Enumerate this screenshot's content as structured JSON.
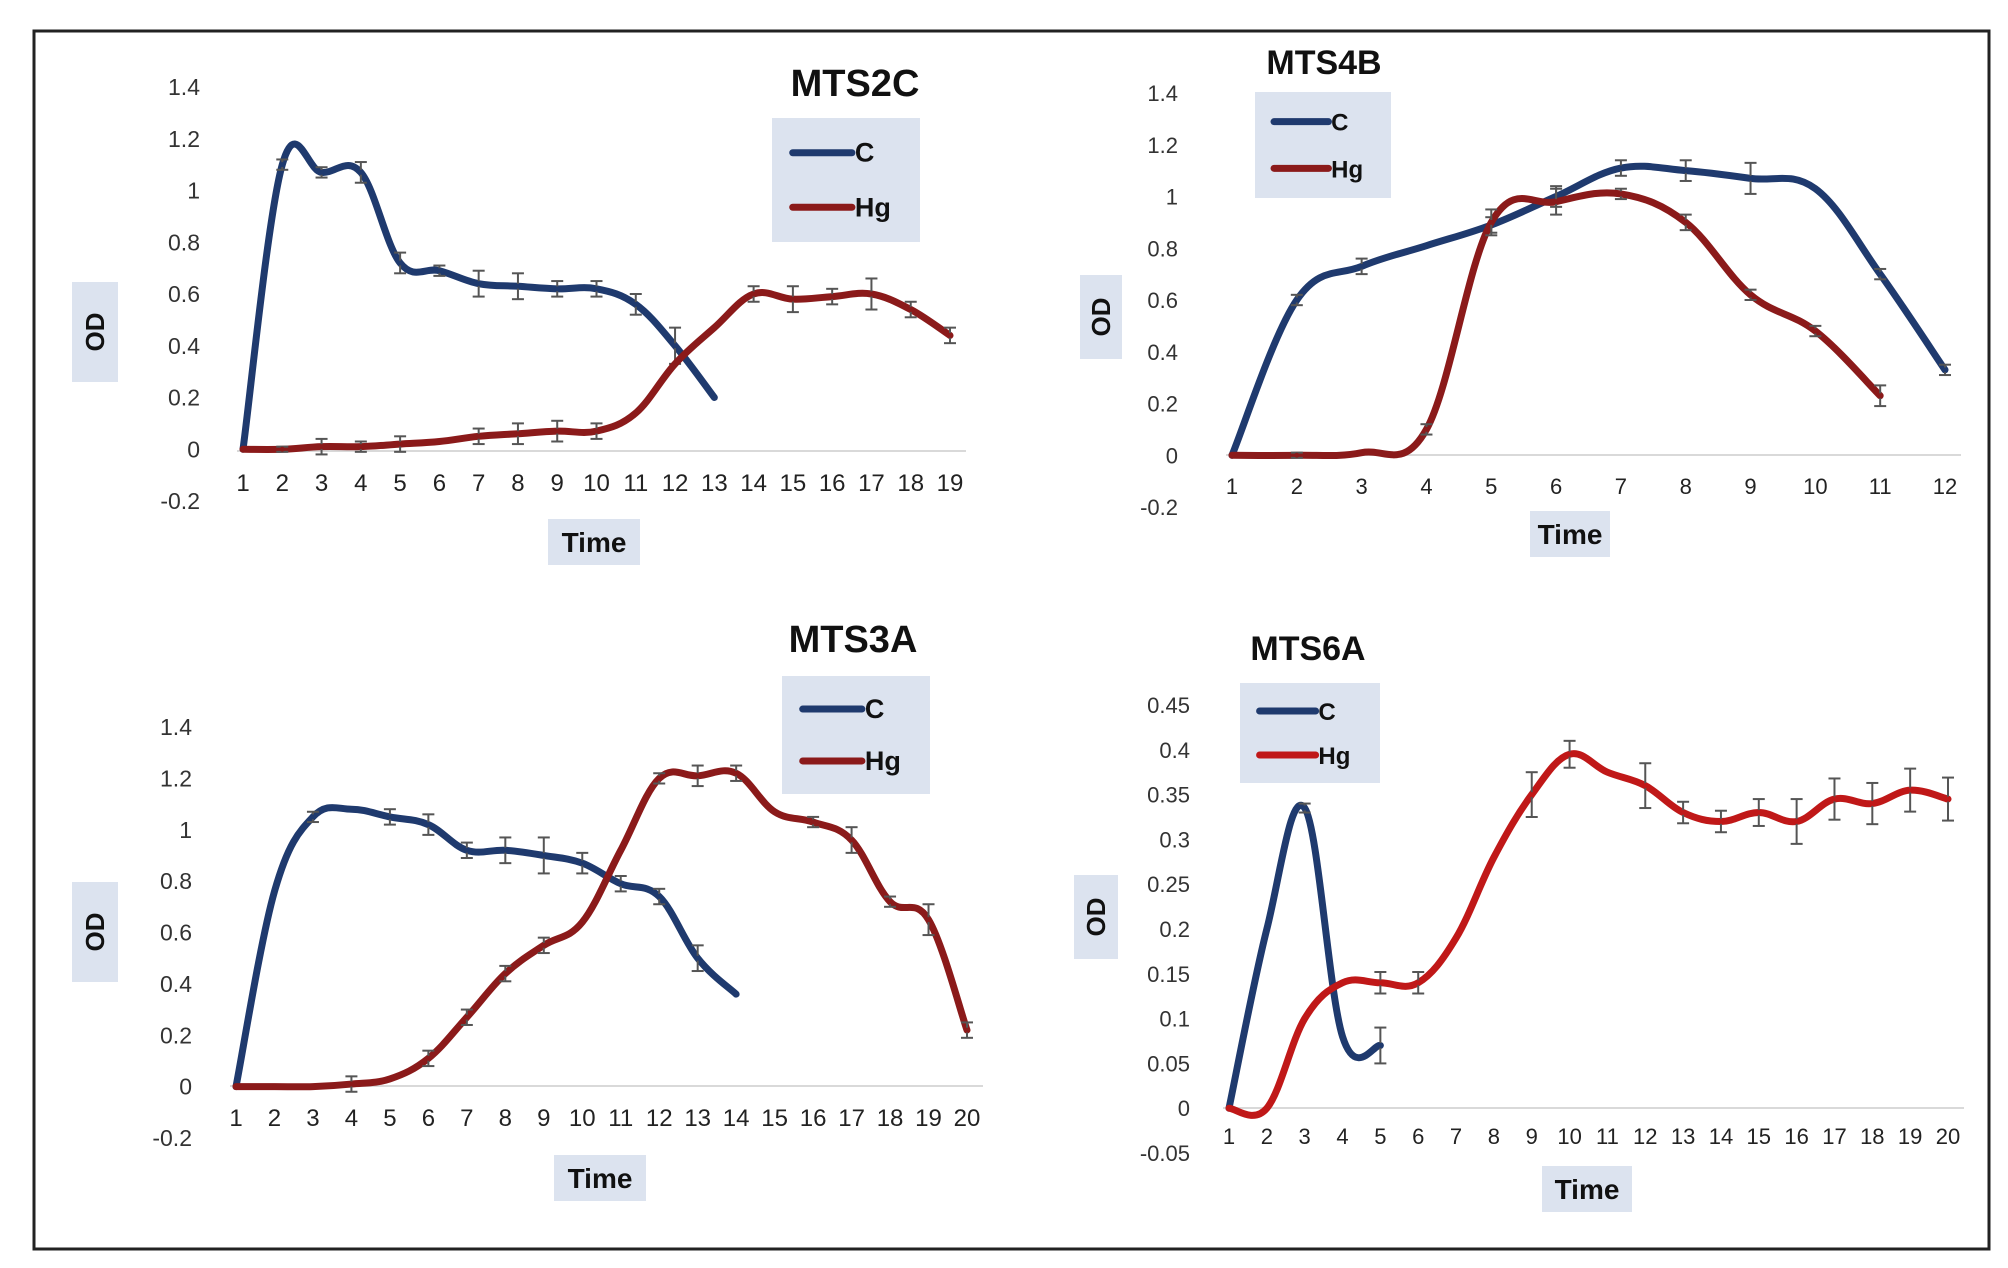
{
  "chart_data": [
    {
      "type": "line",
      "title": "MTS2C",
      "xlabel": "Time",
      "ylabel": "OD",
      "x": [
        1,
        2,
        3,
        4,
        5,
        6,
        7,
        8,
        9,
        10,
        11,
        12,
        13,
        14,
        15,
        16,
        17,
        18,
        19
      ],
      "ylim": [
        -0.2,
        1.4
      ],
      "yticks": [
        "1.4",
        "1.2",
        "1",
        "0.8",
        "0.6",
        "0.4",
        "0.2",
        "0",
        "-0.2"
      ],
      "xticks": [
        "1",
        "2",
        "3",
        "4",
        "5",
        "6",
        "7",
        "8",
        "9",
        "10",
        "11",
        "12",
        "13",
        "14",
        "15",
        "16",
        "17",
        "18",
        "19"
      ],
      "grid": false,
      "legend": "top-right",
      "series": [
        {
          "name": "C",
          "color": "#1f3a6e",
          "x": [
            1,
            2,
            3,
            4,
            5,
            6,
            7,
            8,
            9,
            10,
            11,
            12,
            13
          ],
          "values": [
            0,
            1.1,
            1.07,
            1.07,
            0.72,
            0.69,
            0.64,
            0.63,
            0.62,
            0.62,
            0.56,
            0.4,
            0.2
          ],
          "err": [
            0,
            0.02,
            0.02,
            0.04,
            0.04,
            0.02,
            0.05,
            0.05,
            0.03,
            0.03,
            0.04,
            0.07,
            0
          ]
        },
        {
          "name": "Hg",
          "color": "#8b1a1a",
          "x": [
            1,
            2,
            3,
            4,
            5,
            6,
            7,
            8,
            9,
            10,
            11,
            12,
            13,
            14,
            15,
            16,
            17,
            18,
            19
          ],
          "values": [
            0,
            0,
            0.01,
            0.01,
            0.02,
            0.03,
            0.05,
            0.06,
            0.07,
            0.07,
            0.14,
            0.33,
            0.47,
            0.6,
            0.58,
            0.59,
            0.6,
            0.54,
            0.44
          ],
          "err": [
            0,
            0.01,
            0.03,
            0.02,
            0.03,
            0,
            0.03,
            0.04,
            0.04,
            0.03,
            0,
            0,
            0,
            0.03,
            0.05,
            0.03,
            0.06,
            0.03,
            0.03
          ]
        }
      ]
    },
    {
      "type": "line",
      "title": "MTS4B",
      "xlabel": "Time",
      "ylabel": "OD",
      "x": [
        1,
        2,
        3,
        4,
        5,
        6,
        7,
        8,
        9,
        10,
        11,
        12
      ],
      "ylim": [
        -0.2,
        1.4
      ],
      "yticks": [
        "1.4",
        "1.2",
        "1",
        "0.8",
        "0.6",
        "0.4",
        "0.2",
        "0",
        "-0.2"
      ],
      "xticks": [
        "1",
        "2",
        "3",
        "4",
        "5",
        "6",
        "7",
        "8",
        "9",
        "10",
        "11",
        "12"
      ],
      "grid": false,
      "legend": "top-left",
      "series": [
        {
          "name": "C",
          "color": "#1f3a6e",
          "x": [
            1,
            2,
            3,
            4,
            5,
            6,
            7,
            8,
            9,
            10,
            11,
            12
          ],
          "values": [
            0,
            0.6,
            0.73,
            0.81,
            0.89,
            1,
            1.11,
            1.1,
            1.07,
            1.03,
            0.7,
            0.33
          ],
          "err": [
            0,
            0.02,
            0.03,
            0,
            0.03,
            0.04,
            0.03,
            0.04,
            0.06,
            0,
            0.02,
            0.02
          ]
        },
        {
          "name": "Hg",
          "color": "#8b1a1a",
          "x": [
            1,
            2,
            3,
            4,
            5,
            6,
            7,
            8,
            9,
            10,
            11
          ],
          "values": [
            0,
            0,
            0.01,
            0.1,
            0.9,
            0.98,
            1.01,
            0.9,
            0.62,
            0.48,
            0.23
          ],
          "err": [
            0,
            0.01,
            0,
            0.02,
            0.05,
            0.05,
            0.02,
            0.03,
            0.02,
            0.02,
            0.04
          ]
        }
      ]
    },
    {
      "type": "line",
      "title": "MTS3A",
      "xlabel": "Time",
      "ylabel": "OD",
      "x": [
        1,
        2,
        3,
        4,
        5,
        6,
        7,
        8,
        9,
        10,
        11,
        12,
        13,
        14,
        15,
        16,
        17,
        18,
        19,
        20
      ],
      "ylim": [
        -0.2,
        1.4
      ],
      "yticks": [
        "1.4",
        "1.2",
        "1",
        "0.8",
        "0.6",
        "0.4",
        "0.2",
        "0",
        "-0.2"
      ],
      "xticks": [
        "1",
        "2",
        "3",
        "4",
        "5",
        "6",
        "7",
        "8",
        "9",
        "10",
        "11",
        "12",
        "13",
        "14",
        "15",
        "16",
        "17",
        "18",
        "19",
        "20"
      ],
      "grid": false,
      "legend": "top-right",
      "series": [
        {
          "name": "C",
          "color": "#1f3a6e",
          "x": [
            1,
            2,
            3,
            4,
            5,
            6,
            7,
            8,
            9,
            10,
            11,
            12,
            13,
            14
          ],
          "values": [
            0,
            0.76,
            1.05,
            1.08,
            1.05,
            1.02,
            0.92,
            0.92,
            0.9,
            0.87,
            0.79,
            0.74,
            0.5,
            0.36
          ],
          "err": [
            0,
            0,
            0.02,
            0,
            0.03,
            0.04,
            0.03,
            0.05,
            0.07,
            0.04,
            0.03,
            0.03,
            0.05,
            0
          ]
        },
        {
          "name": "Hg",
          "color": "#8b1a1a",
          "x": [
            1,
            2,
            3,
            4,
            5,
            6,
            7,
            8,
            9,
            10,
            11,
            12,
            13,
            14,
            15,
            16,
            17,
            18,
            19,
            20
          ],
          "values": [
            0,
            0,
            0,
            0.01,
            0.03,
            0.11,
            0.27,
            0.44,
            0.55,
            0.64,
            0.92,
            1.2,
            1.21,
            1.22,
            1.07,
            1.03,
            0.96,
            0.72,
            0.65,
            0.22
          ],
          "err": [
            0,
            0,
            0,
            0.03,
            0,
            0.03,
            0.03,
            0.03,
            0.03,
            0,
            0,
            0.02,
            0.04,
            0.03,
            0,
            0.02,
            0.05,
            0.02,
            0.06,
            0.03
          ]
        }
      ]
    },
    {
      "type": "line",
      "title": "MTS6A",
      "xlabel": "Time",
      "ylabel": "OD",
      "x": [
        1,
        2,
        3,
        4,
        5,
        6,
        7,
        8,
        9,
        10,
        11,
        12,
        13,
        14,
        15,
        16,
        17,
        18,
        19,
        20
      ],
      "ylim": [
        -0.05,
        0.45
      ],
      "yticks": [
        "0.45",
        "0.4",
        "0.35",
        "0.3",
        "0.25",
        "0.2",
        "0.15",
        "0.1",
        "0.05",
        "0",
        "-0.05"
      ],
      "xticks": [
        "1",
        "2",
        "3",
        "4",
        "5",
        "6",
        "7",
        "8",
        "9",
        "10",
        "11",
        "12",
        "13",
        "14",
        "15",
        "16",
        "17",
        "18",
        "19",
        "20"
      ],
      "grid": false,
      "legend": "top-left",
      "series": [
        {
          "name": "C",
          "color": "#1f3a6e",
          "x": [
            1,
            2,
            3,
            4,
            5
          ],
          "values": [
            0,
            0.2,
            0.335,
            0.08,
            0.07
          ],
          "err": [
            0,
            0,
            0.005,
            0,
            0.02
          ]
        },
        {
          "name": "Hg",
          "color": "#c01818",
          "x": [
            1,
            2,
            3,
            4,
            5,
            6,
            7,
            8,
            9,
            10,
            11,
            12,
            13,
            14,
            15,
            16,
            17,
            18,
            19,
            20
          ],
          "values": [
            0,
            0,
            0.1,
            0.14,
            0.14,
            0.14,
            0.19,
            0.28,
            0.35,
            0.395,
            0.375,
            0.36,
            0.33,
            0.32,
            0.33,
            0.32,
            0.345,
            0.34,
            0.355,
            0.345
          ],
          "err": [
            0,
            0,
            0,
            0,
            0.012,
            0.012,
            0,
            0,
            0.025,
            0.015,
            0,
            0.025,
            0.012,
            0.012,
            0.015,
            0.025,
            0.023,
            0.023,
            0.024,
            0.024
          ]
        }
      ]
    }
  ]
}
